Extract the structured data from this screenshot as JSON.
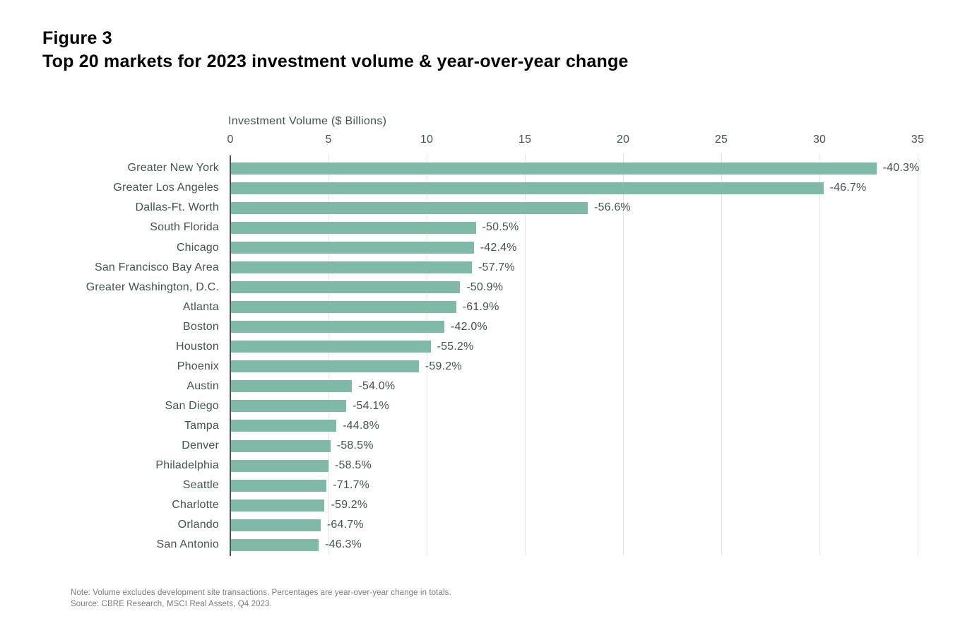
{
  "figure": {
    "label": "Figure 3",
    "title": "Top 20 markets for 2023 investment volume & year-over-year change"
  },
  "chart_data": {
    "type": "bar",
    "orientation": "horizontal",
    "title": "Top 20 markets for 2023 investment volume & year-over-year change",
    "axis_title": "Investment Volume ($ Billions)",
    "xlabel": "Investment Volume ($ Billions)",
    "ylabel": "",
    "xlim": [
      0,
      35
    ],
    "x_ticks": [
      0,
      5,
      10,
      15,
      20,
      25,
      30,
      35
    ],
    "grid": true,
    "bar_color": "#80b9a8",
    "categories": [
      "Greater New York",
      "Greater Los Angeles",
      "Dallas-Ft. Worth",
      "South Florida",
      "Chicago",
      "San Francisco Bay Area",
      "Greater Washington, D.C.",
      "Atlanta",
      "Boston",
      "Houston",
      "Phoenix",
      "Austin",
      "San Diego",
      "Tampa",
      "Denver",
      "Philadelphia",
      "Seattle",
      "Charlotte",
      "Orlando",
      "San Antonio"
    ],
    "values": [
      32.9,
      30.2,
      18.2,
      12.5,
      12.4,
      12.3,
      11.7,
      11.5,
      10.9,
      10.2,
      9.6,
      6.2,
      5.9,
      5.4,
      5.1,
      5.0,
      4.9,
      4.8,
      4.6,
      4.5
    ],
    "values_unit": "$ Billions (estimated from bar lengths)",
    "yoy_labels": [
      "-40.3%",
      "-46.7%",
      "-56.6%",
      "-50.5%",
      "-42.4%",
      "-57.7%",
      "-50.9%",
      "-61.9%",
      "-42.0%",
      "-55.2%",
      "-59.2%",
      "-54.0%",
      "-54.1%",
      "-44.8%",
      "-58.5%",
      "-58.5%",
      "-71.7%",
      "-59.2%",
      "-64.7%",
      "-46.3%"
    ],
    "legend": []
  },
  "notes": {
    "note": "Note: Volume excludes development site transactions. Percentages are year-over-year change in totals.",
    "source": "Source: CBRE Research, MSCI Real Assets, Q4 2023."
  },
  "colors": {
    "bar": "#80b9a8",
    "text": "#435254",
    "title_text": "#000000",
    "gridline": "#e4e6e5",
    "axis_line": "#4a5557",
    "note_text": "#757d7f",
    "background": "#ffffff"
  }
}
